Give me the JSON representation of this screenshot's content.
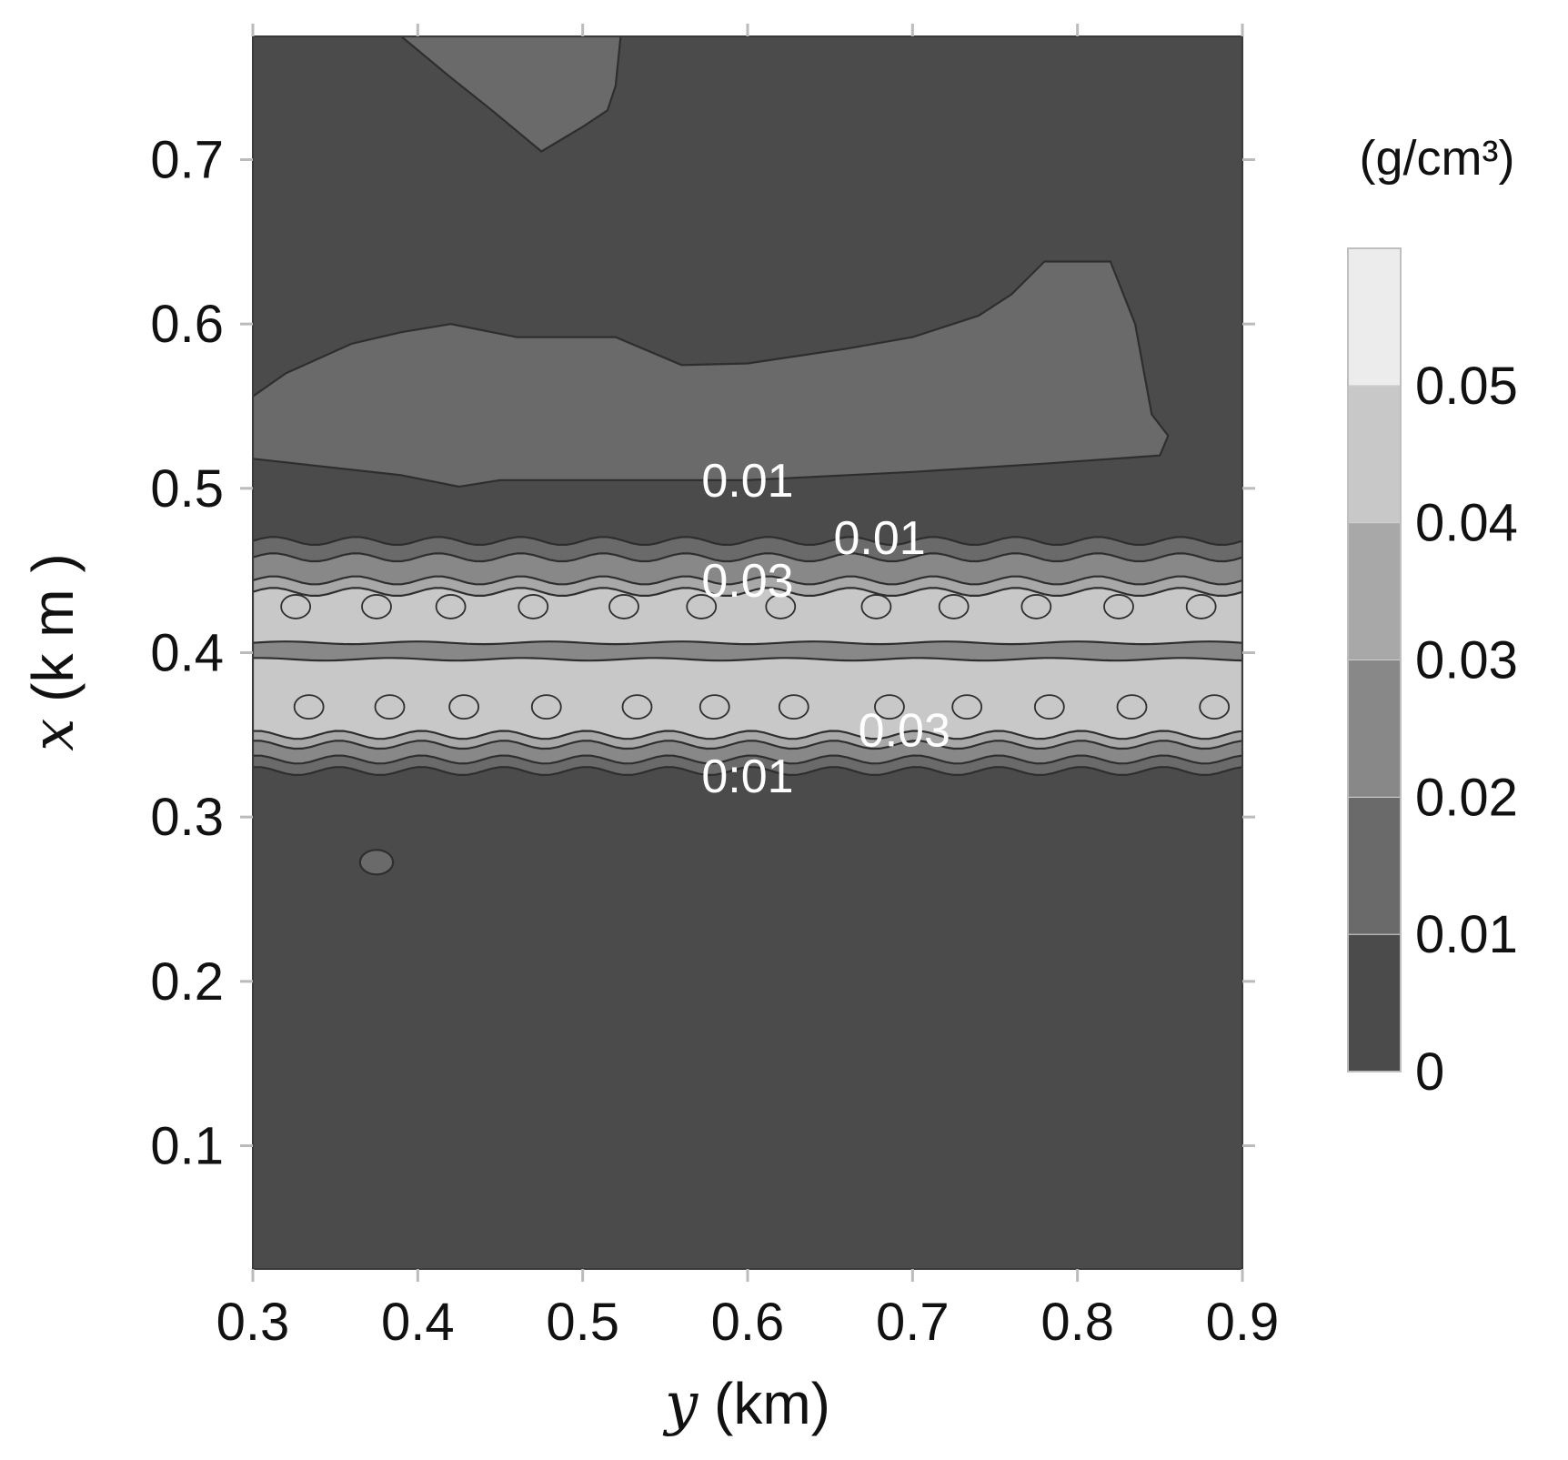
{
  "chart_data": {
    "type": "heatmap",
    "subtype": "filled-contour",
    "title": "",
    "xlabel": {
      "var": "y",
      "unit": " (km)"
    },
    "ylabel": {
      "var": "x",
      "unit": " (k m )"
    },
    "xlim": [
      0.3,
      0.9
    ],
    "ylim": [
      0.025,
      0.775
    ],
    "x_ticks": [
      "0.3",
      "0.4",
      "0.5",
      "0.6",
      "0.7",
      "0.8",
      "0.9"
    ],
    "y_ticks": [
      "0.1",
      "0.2",
      "0.3",
      "0.4",
      "0.5",
      "0.6",
      "0.7"
    ],
    "grid": false,
    "colorbar": {
      "unit": "(g/cm³)",
      "levels": [
        0,
        0.01,
        0.02,
        0.03,
        0.04,
        0.05,
        0.06
      ],
      "tick_labels": [
        "0",
        "0.01",
        "0.02",
        "0.03",
        "0.04",
        "0.05"
      ],
      "colors": [
        "#4b4b4b",
        "#6a6a6a",
        "#888888",
        "#a8a8a8",
        "#c8c8c8",
        "#ececec"
      ]
    },
    "regions": [
      {
        "level": 0.01,
        "shape": "top-blob",
        "x_range": [
          0.39,
          0.53
        ],
        "y_range": [
          0.705,
          0.775
        ]
      },
      {
        "level": 0.01,
        "shape": "upper-band",
        "x_range": [
          0.3,
          0.855
        ],
        "y_range": [
          0.5,
          0.64
        ]
      },
      {
        "level": 0.01,
        "shape": "small-blob",
        "x_range": [
          0.365,
          0.385
        ],
        "y_range": [
          0.265,
          0.28
        ]
      },
      {
        "level": 0.01,
        "shape": "stripe",
        "y_range": [
          0.328,
          0.468
        ]
      },
      {
        "level": 0.02,
        "shape": "stripe",
        "y_range": [
          0.335,
          0.458
        ]
      },
      {
        "level": 0.03,
        "shape": "stripe",
        "y_range": [
          0.344,
          0.444
        ]
      },
      {
        "level": 0.04,
        "shape": "stripe",
        "y_range": [
          0.35,
          0.437
        ]
      },
      {
        "level": 0.02,
        "shape": "center-trough",
        "y_range": [
          0.396,
          0.406
        ]
      }
    ],
    "contour_labels": [
      {
        "text": "0.01",
        "x": 0.6,
        "y": 0.505
      },
      {
        "text": "0.01",
        "x": 0.68,
        "y": 0.47
      },
      {
        "text": "0.03",
        "x": 0.6,
        "y": 0.444
      },
      {
        "text": "0.03",
        "x": 0.695,
        "y": 0.353
      },
      {
        "text": "0:01",
        "x": 0.6,
        "y": 0.325
      }
    ]
  }
}
